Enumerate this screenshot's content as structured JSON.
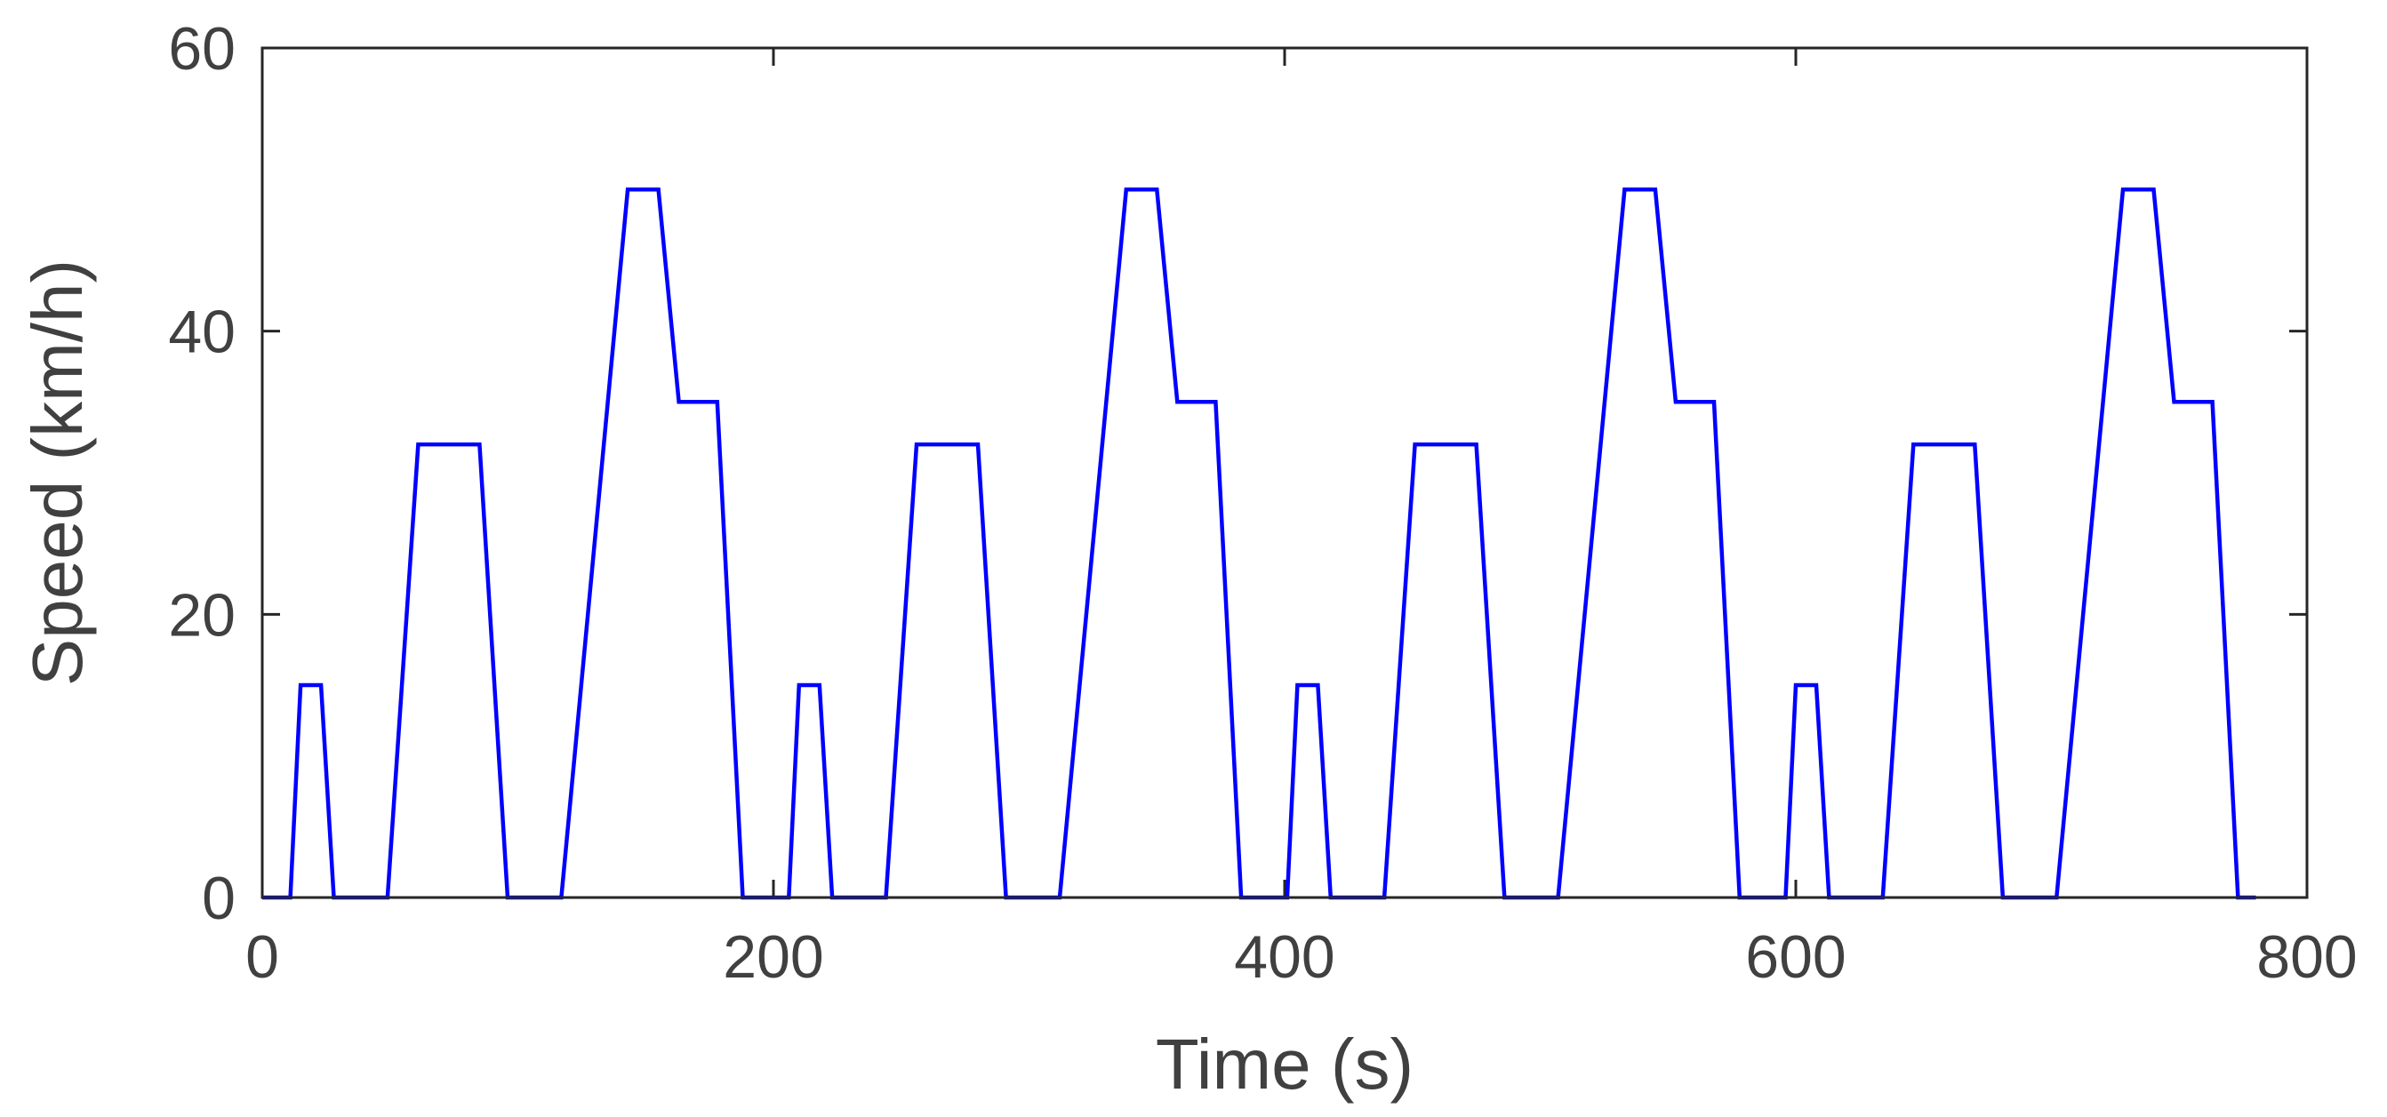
{
  "chart_data": {
    "type": "line",
    "title": "",
    "xlabel": "Time (s)",
    "ylabel": "Speed (km/h)",
    "xlim": [
      0,
      800
    ],
    "ylim": [
      0,
      60
    ],
    "xticks": [
      0,
      200,
      400,
      600,
      800
    ],
    "yticks": [
      0,
      20,
      40,
      60
    ],
    "xtick_labels": [
      "0",
      "200",
      "400",
      "600",
      "800"
    ],
    "ytick_labels": [
      "0",
      "20",
      "40",
      "60"
    ],
    "grid": false,
    "box": true,
    "line_color": "#0000ff",
    "series": [
      {
        "x": [
          0,
          11,
          15,
          23,
          28,
          49,
          61,
          85,
          96,
          117,
          143,
          155,
          163,
          178,
          188,
          195,
          206,
          210,
          218,
          223,
          244,
          256,
          280,
          291,
          312,
          338,
          350,
          358,
          373,
          383,
          390,
          401,
          405,
          413,
          418,
          439,
          451,
          475,
          486,
          507,
          533,
          545,
          553,
          568,
          578,
          585,
          596,
          600,
          608,
          613,
          634,
          646,
          670,
          681,
          702,
          728,
          740,
          748,
          763,
          773,
          780
        ],
        "y": [
          0,
          0,
          15,
          15,
          0,
          0,
          32,
          32,
          0,
          0,
          50,
          50,
          35,
          35,
          0,
          0,
          0,
          15,
          15,
          0,
          0,
          32,
          32,
          0,
          0,
          50,
          50,
          35,
          35,
          0,
          0,
          0,
          15,
          15,
          0,
          0,
          32,
          32,
          0,
          0,
          50,
          50,
          35,
          35,
          0,
          0,
          0,
          15,
          15,
          0,
          0,
          32,
          32,
          0,
          0,
          50,
          50,
          35,
          35,
          0,
          0
        ]
      }
    ]
  }
}
